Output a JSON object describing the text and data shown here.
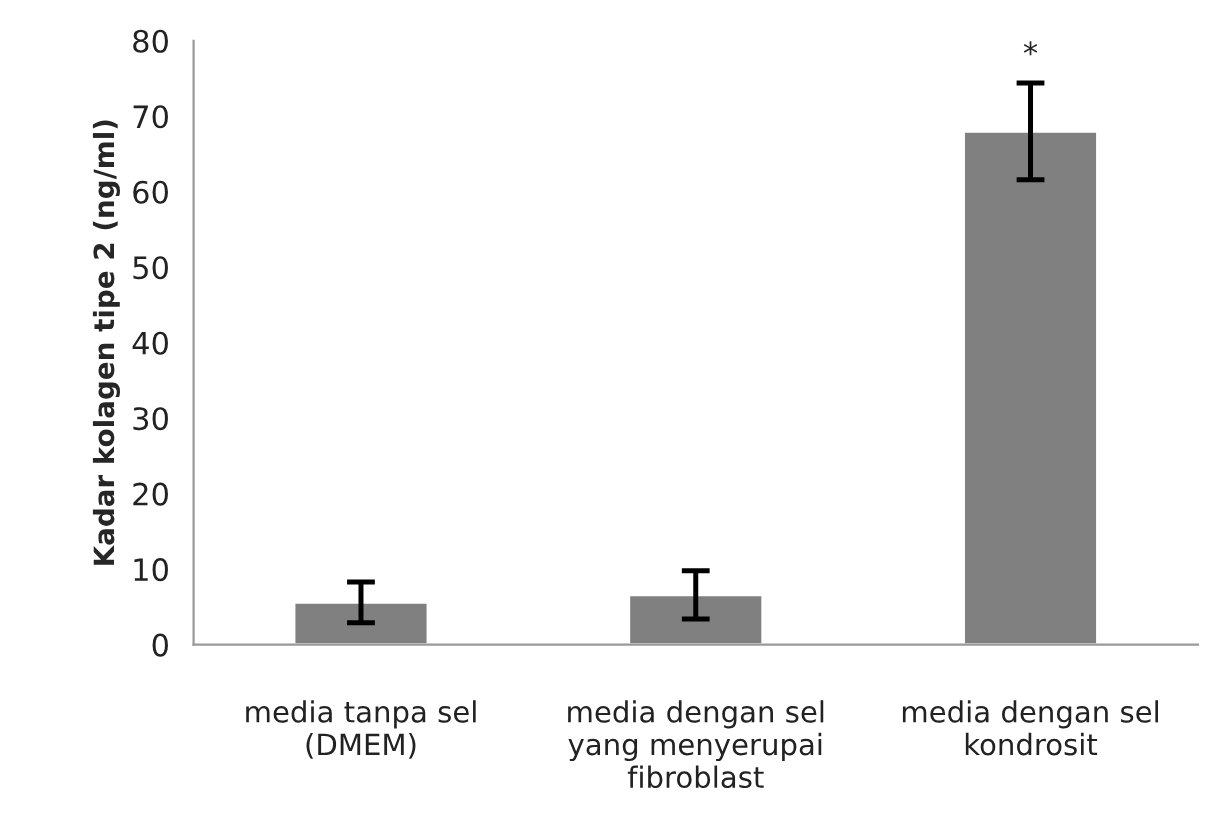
{
  "chart_data": {
    "type": "bar",
    "categories": [
      "media tanpa sel\n(DMEM)",
      "media dengan sel\nyang menyerupai\nfibroblast",
      "media dengan sel\nkondrosit"
    ],
    "values": [
      5.6,
      6.6,
      68.0
    ],
    "errors": [
      2.7,
      3.2,
      6.4
    ],
    "color": "#808080",
    "ylabel": "Kadar kolagen tipe 2 (ng/ml)",
    "ylim": [
      0,
      80
    ],
    "yticks": [
      0,
      10,
      20,
      30,
      40,
      50,
      60,
      70,
      80
    ],
    "annotations": [
      "*"
    ],
    "grid": false,
    "legend": false
  }
}
